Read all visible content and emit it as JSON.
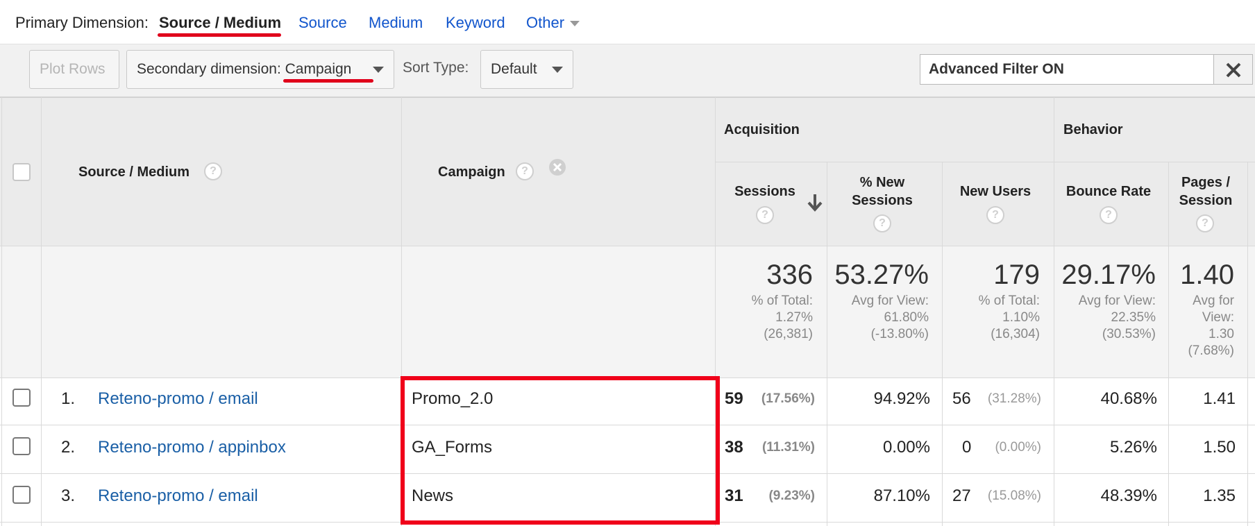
{
  "primary_dimension": {
    "label": "Primary Dimension:",
    "active": "Source / Medium",
    "options": [
      "Source",
      "Medium",
      "Keyword",
      "Other"
    ]
  },
  "toolbar": {
    "plot_rows": "Plot Rows",
    "secondary_prefix": "Secondary dimension: ",
    "secondary_value": "Campaign",
    "sort_label": "Sort Type:",
    "sort_value": "Default",
    "filter_text": "Advanced Filter ON",
    "filter_close": "✕"
  },
  "table": {
    "col_source": "Source / Medium",
    "col_campaign": "Campaign",
    "group_acquisition": "Acquisition",
    "group_behavior": "Behavior",
    "col_sessions": "Sessions",
    "col_new_sessions": "% New Sessions",
    "col_new_users": "New Users",
    "col_bounce": "Bounce Rate",
    "col_pages": "Pages / Session",
    "help": "?",
    "totals": {
      "sessions": "336",
      "sessions_sub": [
        "% of Total:",
        "1.27%",
        "(26,381)"
      ],
      "new_sessions": "53.27%",
      "new_sessions_sub": [
        "Avg for View:",
        "61.80%",
        "(-13.80%)"
      ],
      "new_users": "179",
      "new_users_sub": [
        "% of Total:",
        "1.10%",
        "(16,304)"
      ],
      "bounce": "29.17%",
      "bounce_sub": [
        "Avg for View:",
        "22.35%",
        "(30.53%)"
      ],
      "pages": "1.40",
      "pages_sub": [
        "Avg for",
        "View:",
        "1.30",
        "(7.68%)"
      ]
    },
    "rows": [
      {
        "index": "1.",
        "source": "Reteno-promo / email",
        "campaign": "Promo_2.0",
        "sessions": "59",
        "sessions_pct": "(17.56%)",
        "new_sessions": "94.92%",
        "new_users": "56",
        "new_users_pct": "(31.28%)",
        "bounce": "40.68%",
        "pages": "1.41"
      },
      {
        "index": "2.",
        "source": "Reteno-promo / appinbox",
        "campaign": "GA_Forms",
        "sessions": "38",
        "sessions_pct": "(11.31%)",
        "new_sessions": "0.00%",
        "new_users": "0",
        "new_users_pct": "(0.00%)",
        "bounce": "5.26%",
        "pages": "1.50"
      },
      {
        "index": "3.",
        "source": "Reteno-promo / email",
        "campaign": "News",
        "sessions": "31",
        "sessions_pct": "(9.23%)",
        "new_sessions": "87.10%",
        "new_users": "27",
        "new_users_pct": "(15.08%)",
        "bounce": "48.39%",
        "pages": "1.35"
      }
    ]
  },
  "colors": {
    "link": "#1155cc",
    "row_link": "#1a5fa6",
    "highlight": "#f0001a"
  }
}
